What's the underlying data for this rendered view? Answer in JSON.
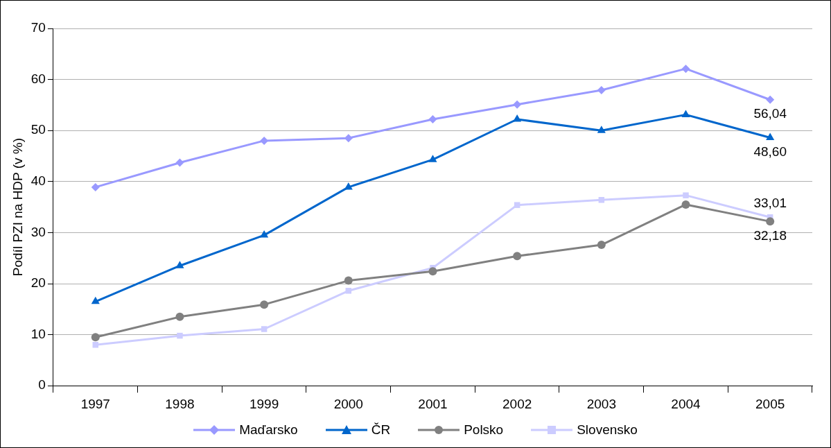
{
  "chart_data": {
    "type": "line",
    "ylabel": "Podíl PZI na HDP (v %)",
    "categories": [
      "1997",
      "1998",
      "1999",
      "2000",
      "2001",
      "2002",
      "2003",
      "2004",
      "2005"
    ],
    "series": [
      {
        "name": "Maďarsko",
        "color": "#9999ff",
        "marker": "diamond",
        "values": [
          38.9,
          43.7,
          48.0,
          48.5,
          52.2,
          55.1,
          57.9,
          62.1,
          56.04
        ],
        "value_labels": [
          null,
          null,
          null,
          null,
          null,
          null,
          null,
          null,
          "56,04"
        ]
      },
      {
        "name": "ČR",
        "color": "#0066cc",
        "marker": "triangle",
        "values": [
          16.5,
          23.5,
          29.5,
          38.9,
          44.3,
          52.2,
          50.0,
          53.1,
          48.6
        ],
        "value_labels": [
          null,
          null,
          null,
          null,
          null,
          null,
          null,
          null,
          "48,60"
        ]
      },
      {
        "name": "Polsko",
        "color": "#808080",
        "marker": "circle",
        "values": [
          9.5,
          13.5,
          15.9,
          20.6,
          22.4,
          25.4,
          27.6,
          35.5,
          32.18
        ],
        "value_labels": [
          null,
          null,
          null,
          null,
          null,
          null,
          null,
          null,
          "32,18"
        ]
      },
      {
        "name": "Slovensko",
        "color": "#ccccff",
        "marker": "square",
        "values": [
          8.0,
          9.8,
          11.1,
          18.6,
          23.1,
          35.4,
          36.4,
          37.3,
          33.01
        ],
        "value_labels": [
          null,
          null,
          null,
          null,
          null,
          null,
          null,
          null,
          "33,01"
        ]
      }
    ],
    "ylim": [
      0,
      70
    ],
    "yticks": [
      0,
      10,
      20,
      30,
      40,
      50,
      60,
      70
    ],
    "grid": "y",
    "legend": "bottom",
    "line_style": "solid"
  }
}
